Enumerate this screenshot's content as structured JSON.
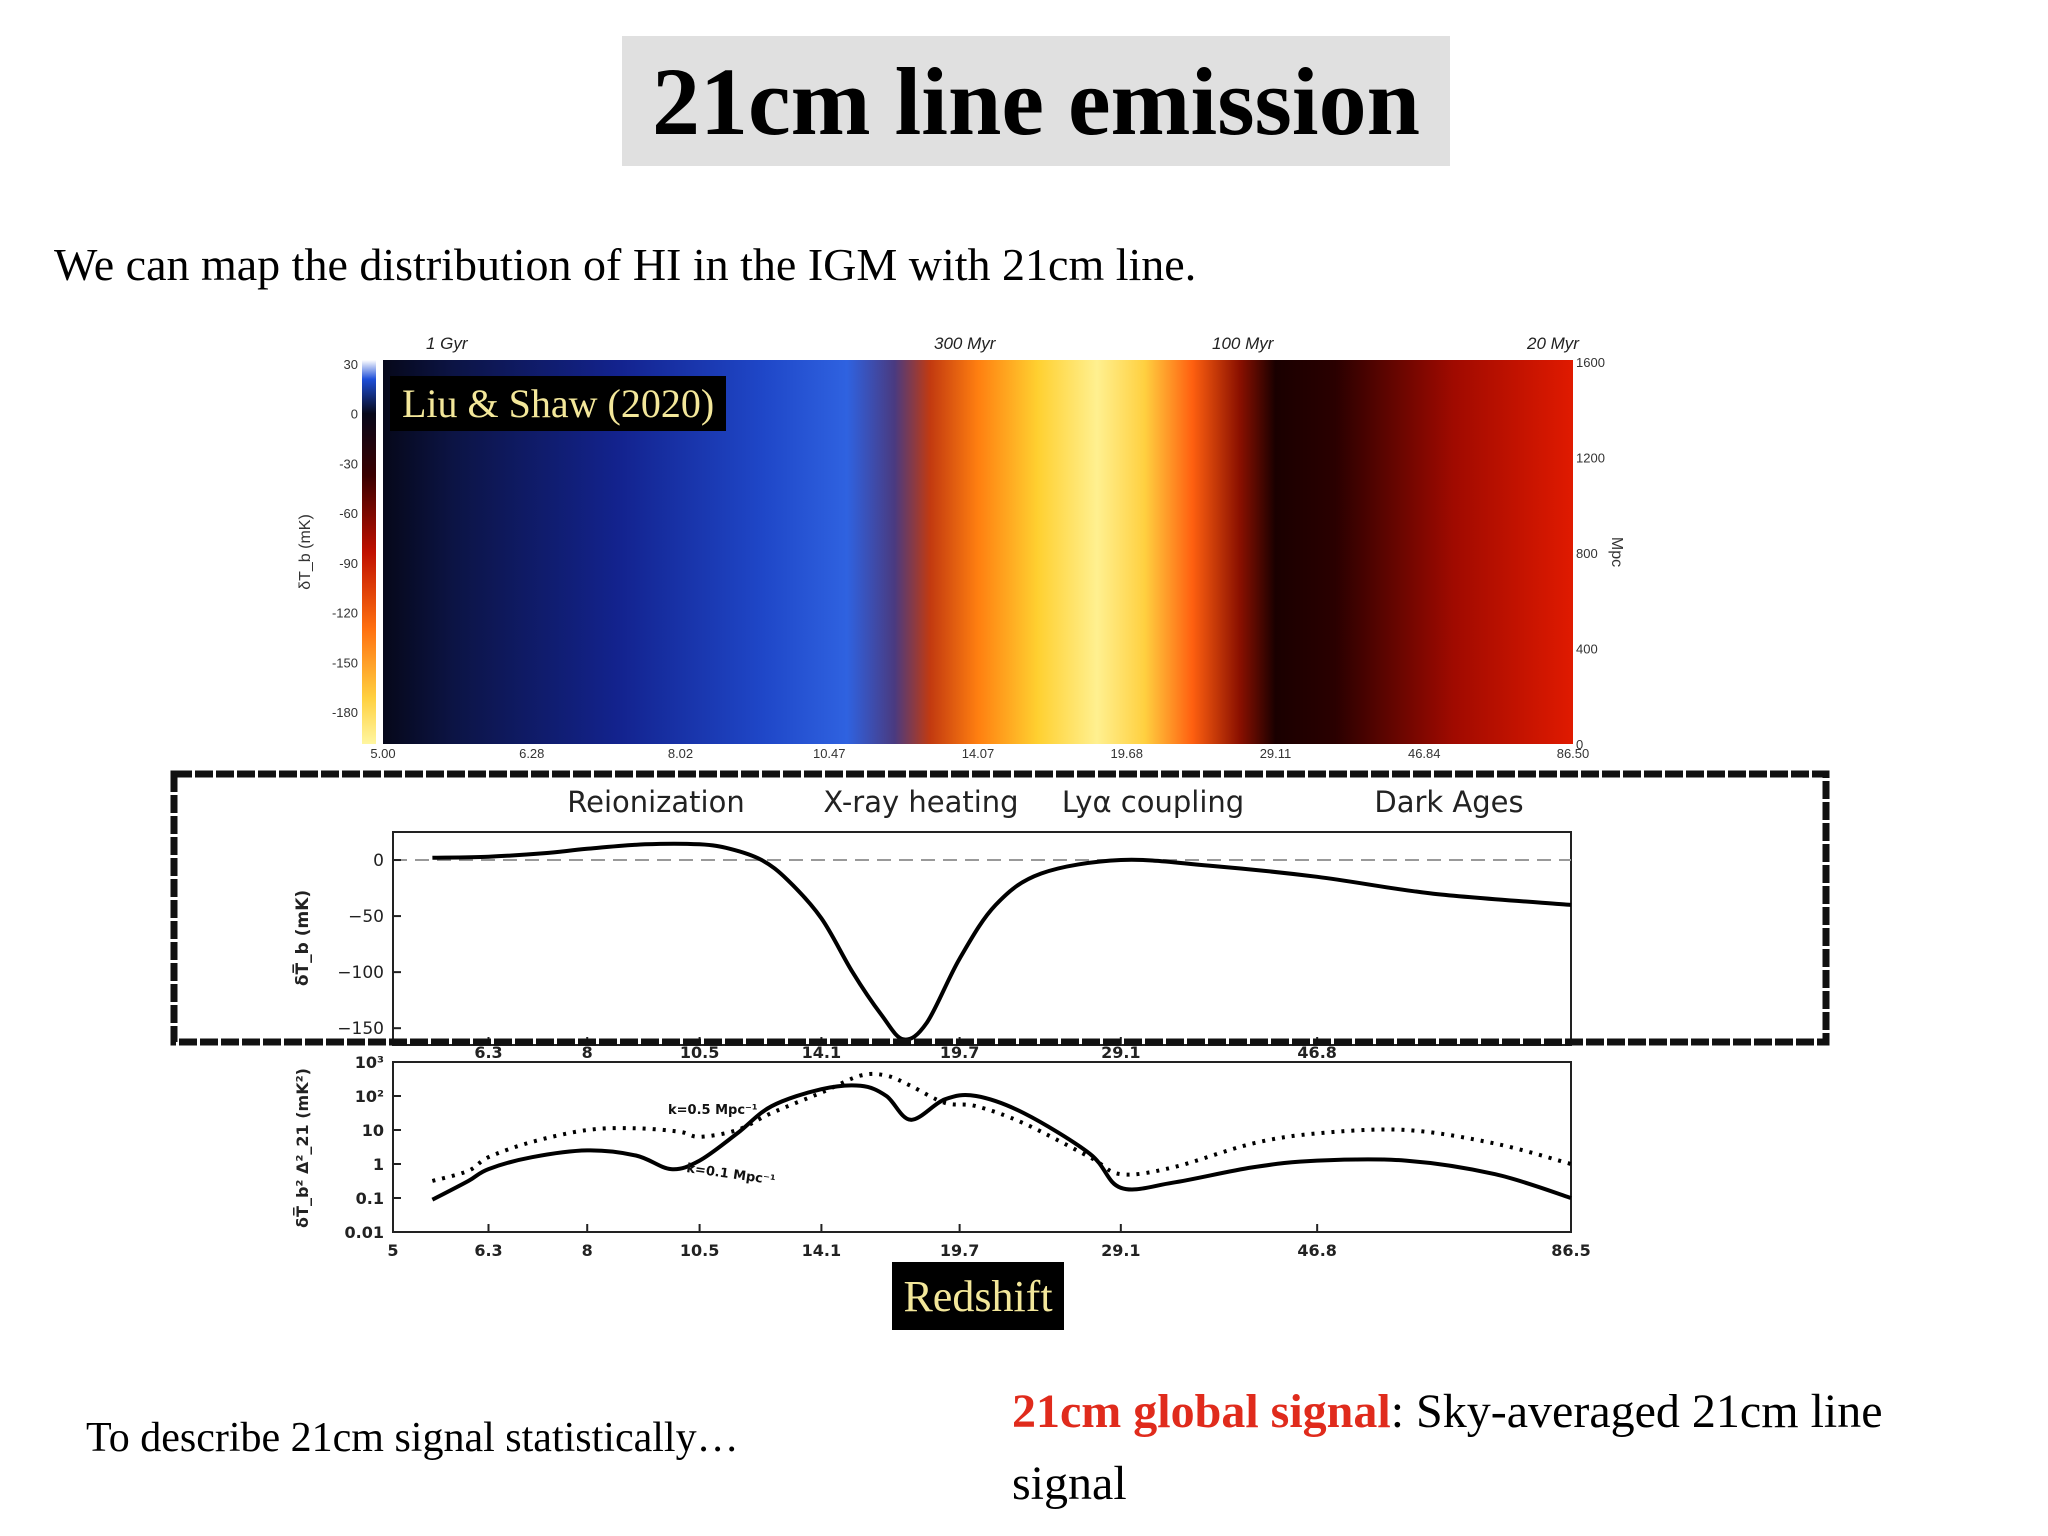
{
  "title": "21cm line emission",
  "intro": "We can map the distribution of HI in the IGM with 21cm line.",
  "citation": "Liu & Shaw (2020)",
  "redshift_label": "Redshift",
  "bottom_left": "To describe 21cm signal statistically…",
  "bottom_right": {
    "highlight": "21cm global signal",
    "text": ": Sky-averaged 21cm line signal"
  },
  "colors": {
    "highlight": "#e02b1c",
    "title_bg": "#e0e0e0",
    "label_box_text": "#f3e79a"
  },
  "chart_data": [
    {
      "type": "heatmap",
      "top_ticks": [
        "1 Gyr",
        "300 Myr",
        "100 Myr",
        "20 Myr"
      ],
      "colorbar": {
        "label": "δT_b (mK)",
        "ticks": [
          30,
          0,
          -30,
          -60,
          -90,
          -120,
          -150,
          -180
        ]
      },
      "x_ticks": [
        "5.00",
        "6.28",
        "8.02",
        "10.47",
        "14.07",
        "19.68",
        "29.11",
        "46.84",
        "86.50"
      ],
      "right_axis": {
        "label": "Mpc",
        "ticks": [
          1600,
          1200,
          800,
          400,
          0
        ]
      }
    },
    {
      "type": "line",
      "epochs": [
        "Reionization",
        "X-ray heating",
        "Lyα coupling",
        "Dark Ages"
      ],
      "ylabel": "δT̅_b (mK)",
      "y_ticks": [
        0,
        -50,
        -100,
        -150
      ],
      "x_ticks": [
        "6.3",
        "8",
        "10.5",
        "14.1",
        "19.7",
        "29.1",
        "46.8"
      ],
      "ylim": [
        -165,
        25
      ],
      "x": [
        5.5,
        6.3,
        7.2,
        8.0,
        9.2,
        10.5,
        11.3,
        12.2,
        13.0,
        14.1,
        15.2,
        16.3,
        17.2,
        18.2,
        19.7,
        21.5,
        24.0,
        29.1,
        36.0,
        46.8,
        62.0,
        86.5
      ],
      "y": [
        2,
        3,
        6,
        10,
        14,
        14,
        10,
        0,
        -18,
        -52,
        -100,
        -138,
        -160,
        -145,
        -88,
        -40,
        -12,
        0,
        -5,
        -15,
        -30,
        -40
      ]
    },
    {
      "type": "line",
      "ylabel": "δT̅_b² Δ²_21 (mK²)",
      "y_ticks": [
        "10³",
        "10²",
        "10",
        "1",
        "0.1",
        "0.01"
      ],
      "x_ticks": [
        "5",
        "6.3",
        "8",
        "10.5",
        "14.1",
        "19.7",
        "29.1",
        "46.8",
        "86.5"
      ],
      "ylim_log10": [
        -2,
        3
      ],
      "series": [
        {
          "name": "k=0.1 Mpc⁻¹",
          "x": [
            5.5,
            6.0,
            6.3,
            7.0,
            8.0,
            9.0,
            9.8,
            10.5,
            11.5,
            12.5,
            14.1,
            15.5,
            16.5,
            17.5,
            19.0,
            20.5,
            23.0,
            27.0,
            29.1,
            33.0,
            40.0,
            46.8,
            58.0,
            72.0,
            86.5
          ],
          "log10_y": [
            -1.05,
            -0.5,
            -0.15,
            0.2,
            0.4,
            0.25,
            -0.15,
            0.1,
            0.9,
            1.7,
            2.2,
            2.3,
            2.0,
            1.3,
            1.9,
            2.0,
            1.5,
            0.3,
            -0.7,
            -0.55,
            -0.1,
            0.1,
            0.1,
            -0.3,
            -1.0
          ]
        },
        {
          "name": "k=0.5 Mpc⁻¹",
          "x": [
            5.5,
            6.0,
            6.3,
            7.0,
            8.0,
            9.0,
            10.0,
            10.5,
            11.5,
            12.5,
            14.1,
            15.5,
            16.5,
            17.5,
            19.0,
            20.5,
            23.0,
            27.0,
            29.1,
            33.0,
            40.0,
            46.8,
            58.0,
            72.0,
            86.5
          ],
          "log10_y": [
            -0.5,
            -0.2,
            0.2,
            0.65,
            1.0,
            1.05,
            0.95,
            0.8,
            1.0,
            1.5,
            2.1,
            2.6,
            2.6,
            2.3,
            1.8,
            1.7,
            1.2,
            0.2,
            -0.3,
            -0.1,
            0.6,
            0.9,
            1.0,
            0.6,
            0.0
          ]
        }
      ]
    }
  ]
}
